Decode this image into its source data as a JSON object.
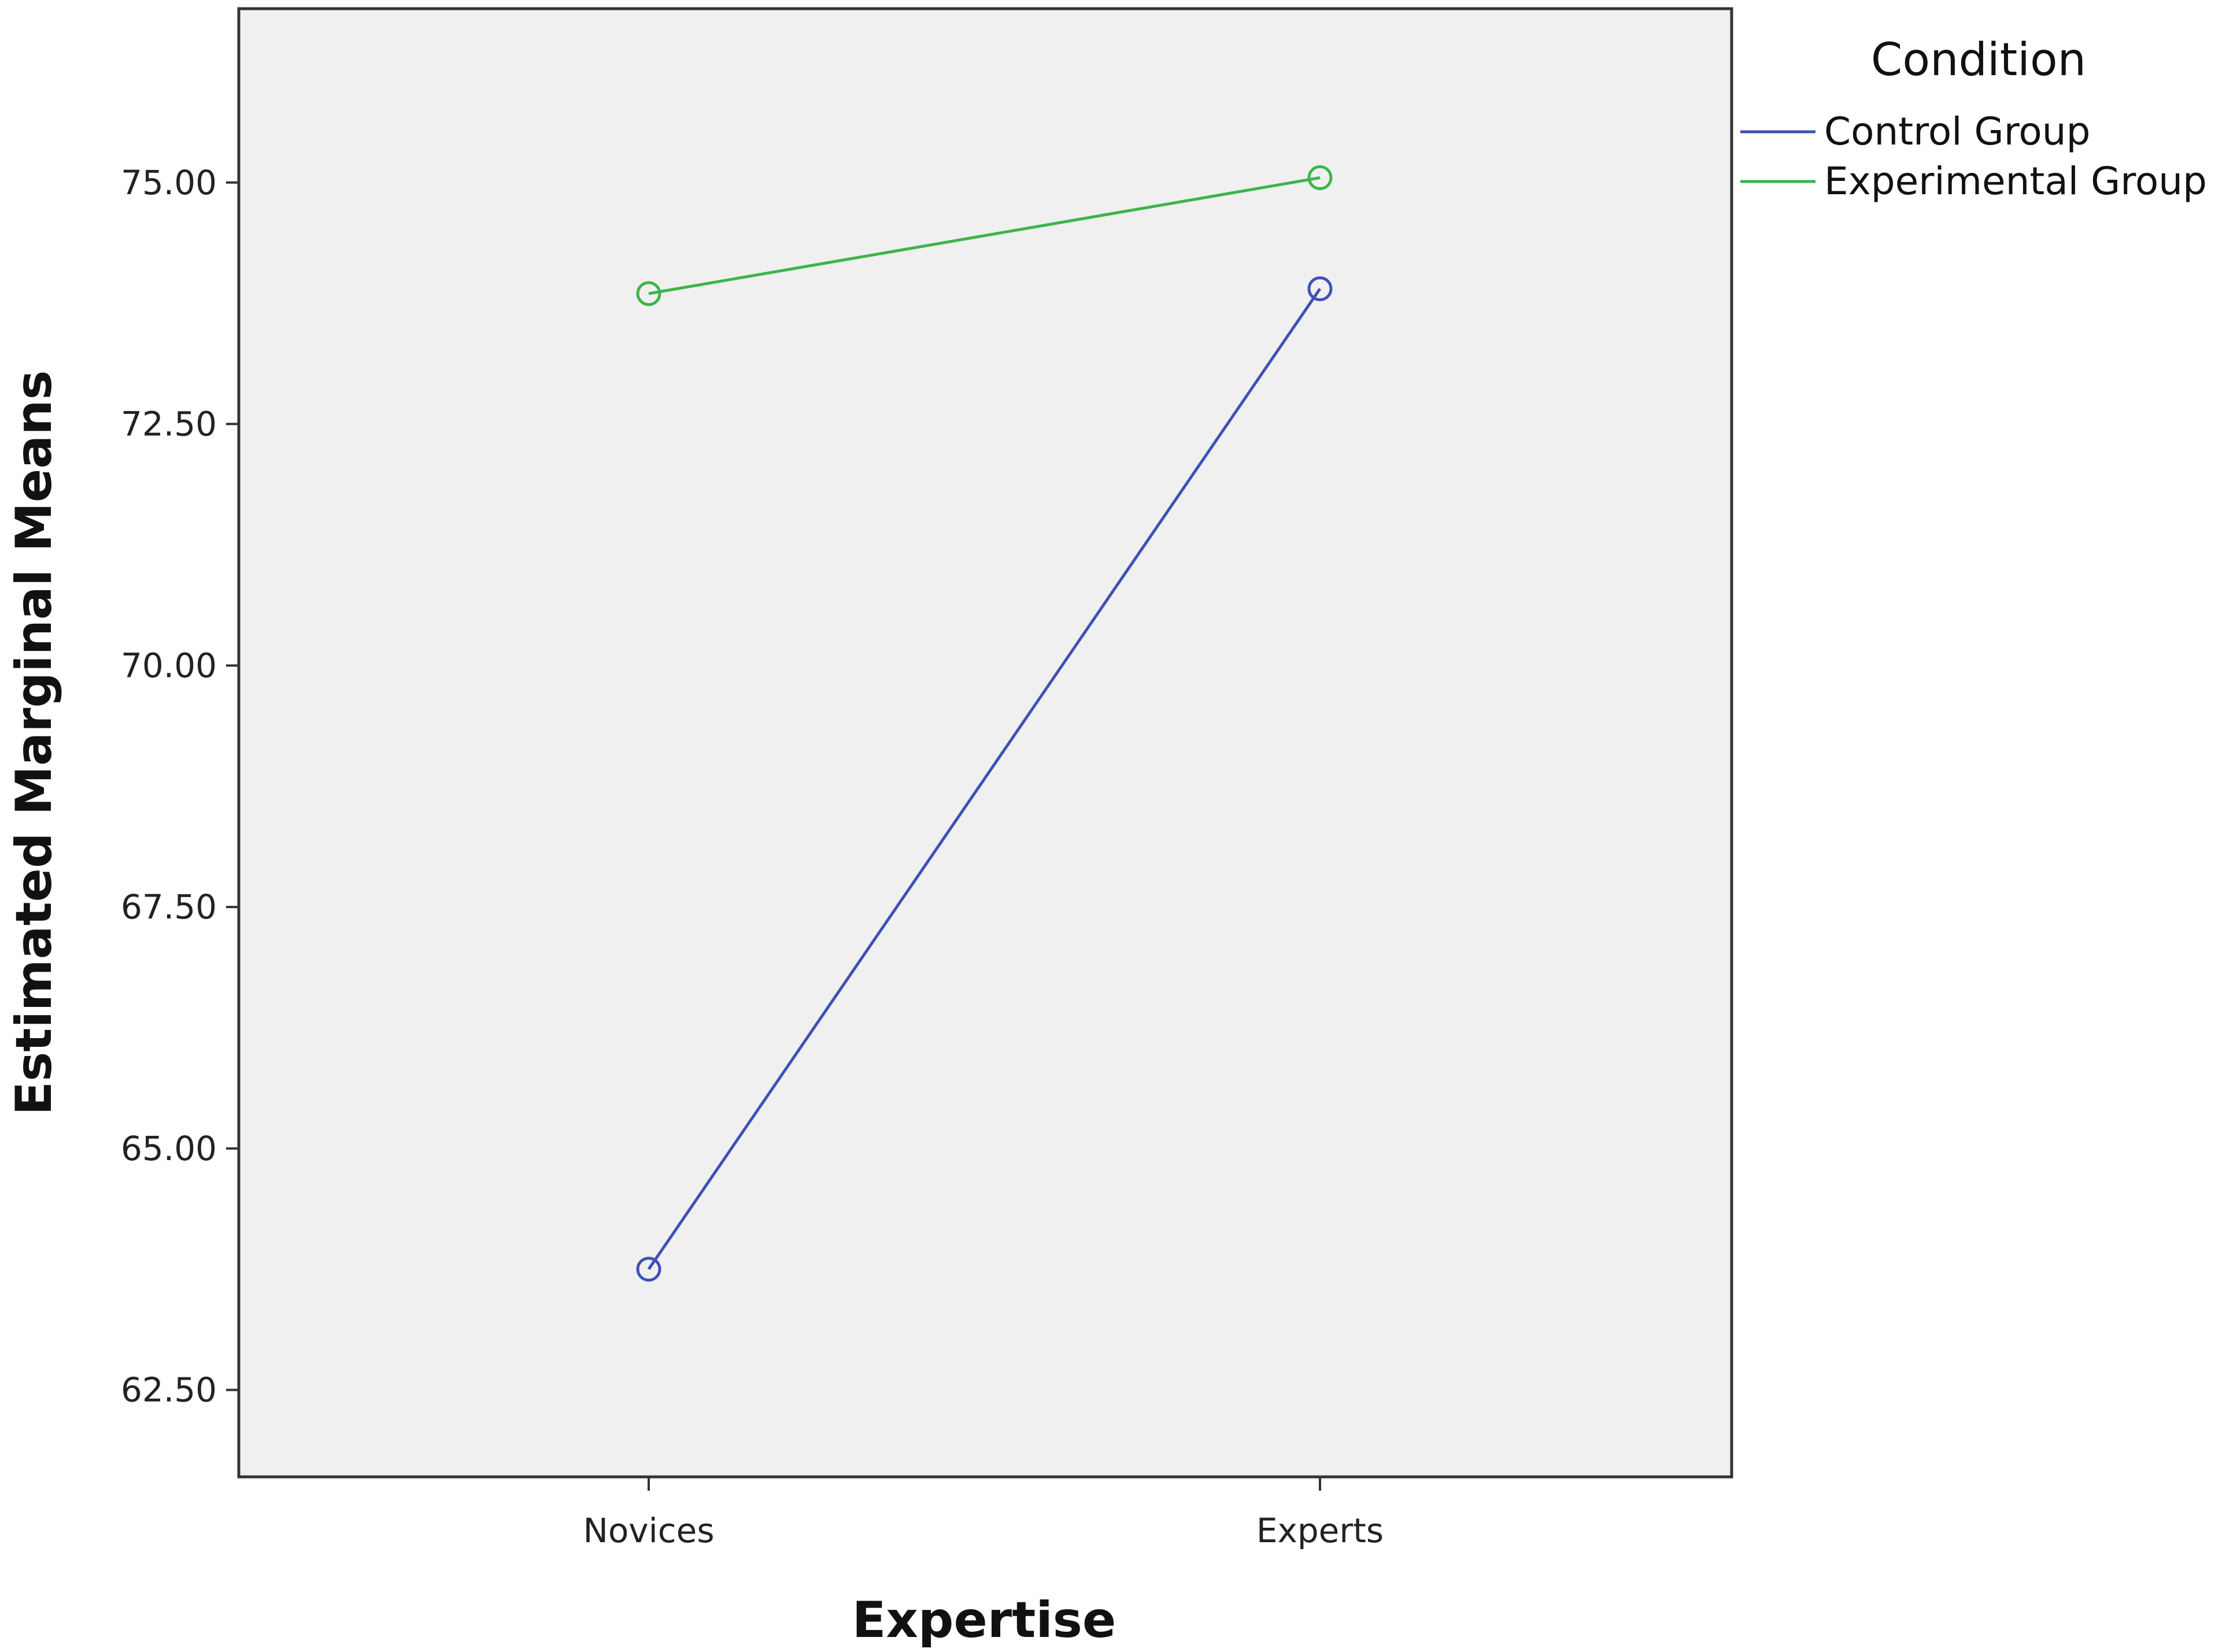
{
  "chart_data": {
    "type": "line",
    "xlabel": "Expertise",
    "ylabel": "Estimated Marginal Means",
    "categories": [
      "Novices",
      "Experts"
    ],
    "ylim": [
      61.6,
      76.8
    ],
    "yticks": [
      62.5,
      65.0,
      67.5,
      70.0,
      72.5,
      75.0
    ],
    "ytick_labels": [
      "62.50",
      "65.00",
      "67.50",
      "70.00",
      "72.50",
      "75.00"
    ],
    "grid": false,
    "legend": {
      "title": "Condition",
      "placement": "top-right outside"
    },
    "series": [
      {
        "name": "Control Group",
        "color": "#3f51b5",
        "values": [
          63.75,
          73.9
        ]
      },
      {
        "name": "Experimental Group",
        "color": "#3cb44b",
        "values": [
          73.85,
          75.05
        ]
      }
    ],
    "plot_background": "#f0f0f0"
  }
}
